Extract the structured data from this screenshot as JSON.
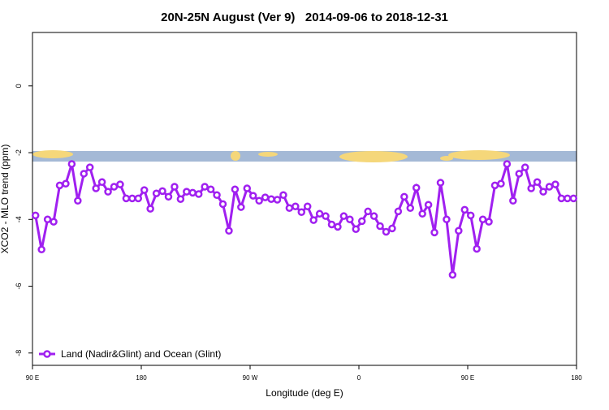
{
  "chart_data": {
    "type": "line",
    "title": "20N-25N August (Ver 9)   2014-09-06 to 2018-12-31",
    "xlabel": "Longitude (deg E)",
    "ylabel": "XCO2 - MLO trend (ppm)",
    "xlim": [
      90,
      540
    ],
    "ylim": [
      -8.37,
      1.6
    ],
    "xticks": [
      {
        "value": 90,
        "label": "90 E"
      },
      {
        "value": 180,
        "label": "180"
      },
      {
        "value": 270,
        "label": "90 W"
      },
      {
        "value": 360,
        "label": "0"
      },
      {
        "value": 450,
        "label": "90 E"
      },
      {
        "value": 540,
        "label": "180"
      }
    ],
    "yticks": [
      0,
      -2,
      -4,
      -6,
      -8
    ],
    "legend": "bottom-left",
    "x": [
      92.5,
      97.5,
      102.5,
      107.5,
      112.5,
      117.5,
      122.5,
      127.5,
      132.5,
      137.5,
      142.5,
      147.5,
      152.5,
      157.5,
      162.5,
      167.5,
      172.5,
      177.5,
      182.5,
      187.5,
      192.5,
      197.5,
      202.5,
      207.5,
      212.5,
      217.5,
      222.5,
      227.5,
      232.5,
      237.5,
      242.5,
      247.5,
      252.5,
      257.5,
      262.5,
      267.5,
      272.5,
      277.5,
      282.5,
      287.5,
      292.5,
      297.5,
      302.5,
      307.5,
      312.5,
      317.5,
      322.5,
      327.5,
      332.5,
      337.5,
      342.5,
      347.5,
      352.5,
      357.5,
      362.5,
      367.5,
      372.5,
      377.5,
      382.5,
      387.5,
      392.5,
      397.5,
      402.5,
      407.5,
      412.5,
      417.5,
      422.5,
      427.5,
      432.5,
      437.5,
      442.5,
      447.5,
      452.5,
      457.5,
      462.5,
      467.5,
      472.5,
      477.5,
      482.5,
      487.5,
      492.5,
      497.5,
      502.5,
      507.5,
      512.5,
      517.5,
      522.5,
      527.5,
      532.5,
      537.5
    ],
    "series": [
      {
        "name": "Land (Nadir&Glint) and Ocean (Glint)",
        "color": "#a020f0",
        "values": [
          -3.88,
          -4.9,
          -4.0,
          -4.07,
          -2.98,
          -2.93,
          -2.34,
          -3.44,
          -2.63,
          -2.44,
          -3.07,
          -2.88,
          -3.17,
          -3.02,
          -2.95,
          -3.37,
          -3.37,
          -3.37,
          -3.12,
          -3.68,
          -3.22,
          -3.15,
          -3.32,
          -3.02,
          -3.39,
          -3.17,
          -3.2,
          -3.24,
          -3.02,
          -3.1,
          -3.27,
          -3.54,
          -4.34,
          -3.1,
          -3.63,
          -3.07,
          -3.29,
          -3.44,
          -3.34,
          -3.39,
          -3.41,
          -3.27,
          -3.66,
          -3.61,
          -3.78,
          -3.61,
          -4.02,
          -3.83,
          -3.9,
          -4.15,
          -4.22,
          -3.9,
          -4.0,
          -4.29,
          -4.05,
          -3.76,
          -3.9,
          -4.2,
          -4.37,
          -4.27,
          -3.76,
          -3.32,
          -3.66,
          -3.05,
          -3.83,
          -3.56,
          -4.39,
          -2.9,
          -4.0,
          -5.66,
          -4.34,
          -3.71,
          -3.88,
          -4.88,
          -4.0,
          -4.07,
          -2.98,
          -2.93,
          -2.34,
          -3.44,
          -2.63,
          -2.44,
          -3.07,
          -2.88,
          -3.17,
          -3.02,
          -2.95,
          -3.37,
          -3.37,
          -3.37
        ]
      }
    ]
  }
}
